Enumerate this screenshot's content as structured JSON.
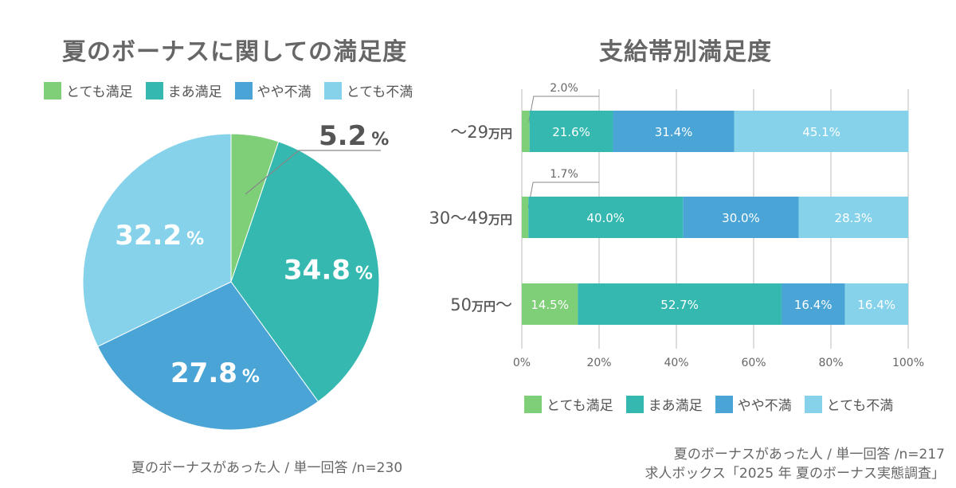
{
  "legend_labels": [
    "とても満足",
    "まあ満足",
    "やや不満",
    "とても不満"
  ],
  "colors": [
    "#7ecf78",
    "#34b8b0",
    "#4aa5d6",
    "#85d2ea"
  ],
  "pie_note": "夏のボーナスがあった人 / 単一回答 /n=230",
  "bar_note": [
    "夏のボーナスがあった人 / 単一回答 /n=217",
    "求人ボックス「2025 年 夏のボーナス実態調査」"
  ],
  "chart_data": [
    {
      "type": "pie",
      "title": "夏のボーナスに関しての満足度",
      "categories": [
        "とても満足",
        "まあ満足",
        "やや不満",
        "とても不満"
      ],
      "values": [
        5.2,
        34.8,
        27.8,
        32.2
      ],
      "value_labels": [
        "5.2",
        "34.8",
        "27.8",
        "32.2"
      ],
      "unit": "%",
      "legend": "top"
    },
    {
      "type": "bar",
      "orientation": "horizontal",
      "stacked": true,
      "title": "支給帯別満足度",
      "categories": [
        {
          "num": "〜29",
          "unit": "万円",
          "suffix": ""
        },
        {
          "num": "30〜49",
          "unit": "万円",
          "suffix": ""
        },
        {
          "num": "50",
          "unit": "万円",
          "suffix": "〜"
        }
      ],
      "series": [
        {
          "name": "とても満足",
          "values": [
            2.0,
            1.7,
            14.5
          ],
          "labels": [
            "2.0%",
            "1.7%",
            "14.5%"
          ]
        },
        {
          "name": "まあ満足",
          "values": [
            21.6,
            40.0,
            52.7
          ],
          "labels": [
            "21.6%",
            "40.0%",
            "52.7%"
          ]
        },
        {
          "name": "やや不満",
          "values": [
            31.4,
            30.0,
            16.4
          ],
          "labels": [
            "31.4%",
            "30.0%",
            "16.4%"
          ]
        },
        {
          "name": "とても不満",
          "values": [
            45.1,
            28.3,
            16.4
          ],
          "labels": [
            "45.1%",
            "28.3%",
            "16.4%"
          ]
        }
      ],
      "xlim": [
        0,
        100
      ],
      "xticks": [
        "0%",
        "20%",
        "40%",
        "60%",
        "80%",
        "100%"
      ],
      "grid": true,
      "legend": "bottom"
    }
  ]
}
